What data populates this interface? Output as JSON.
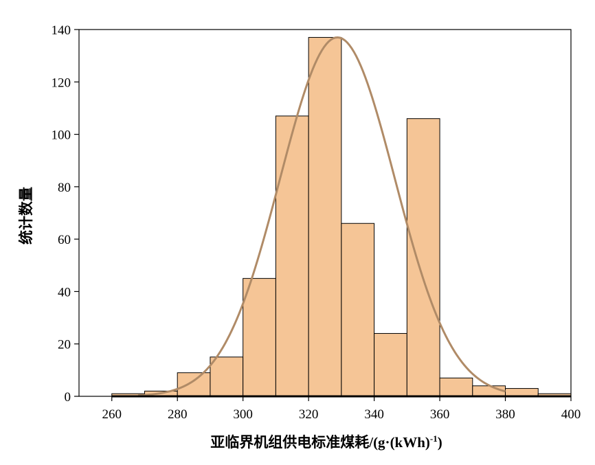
{
  "chart_data": {
    "type": "bar",
    "subtype": "histogram",
    "title": "",
    "xlabel": "亚临界机组供电标准煤耗/(g·(kWh)",
    "xlabel_sup": "-1",
    "xlabel_tail": ")",
    "ylabel": "统计数量",
    "xlim": [
      250,
      400
    ],
    "ylim": [
      0,
      140
    ],
    "x_ticks": [
      260,
      280,
      300,
      320,
      340,
      360,
      380,
      400
    ],
    "y_ticks": [
      0,
      20,
      40,
      60,
      80,
      100,
      120,
      140
    ],
    "bin_width": 10,
    "bins": [
      {
        "start": 260,
        "end": 270,
        "count": 1
      },
      {
        "start": 270,
        "end": 280,
        "count": 2
      },
      {
        "start": 280,
        "end": 290,
        "count": 9
      },
      {
        "start": 290,
        "end": 300,
        "count": 15
      },
      {
        "start": 300,
        "end": 310,
        "count": 45
      },
      {
        "start": 310,
        "end": 320,
        "count": 107
      },
      {
        "start": 320,
        "end": 330,
        "count": 137
      },
      {
        "start": 330,
        "end": 340,
        "count": 66
      },
      {
        "start": 340,
        "end": 350,
        "count": 24
      },
      {
        "start": 350,
        "end": 360,
        "count": 106
      },
      {
        "start": 360,
        "end": 370,
        "count": 7
      },
      {
        "start": 370,
        "end": 380,
        "count": 4
      },
      {
        "start": 380,
        "end": 390,
        "count": 3
      },
      {
        "start": 390,
        "end": 400,
        "count": 1
      }
    ],
    "fit_curve": {
      "type": "normal",
      "mean": 328.8,
      "std": 17.5,
      "peak": 137,
      "x_range": [
        268,
        380
      ]
    },
    "grid": false,
    "legend": "none",
    "colors": {
      "bar_fill": "#F5C596",
      "bar_edge": "#000000",
      "curve": "#B08B67"
    }
  }
}
